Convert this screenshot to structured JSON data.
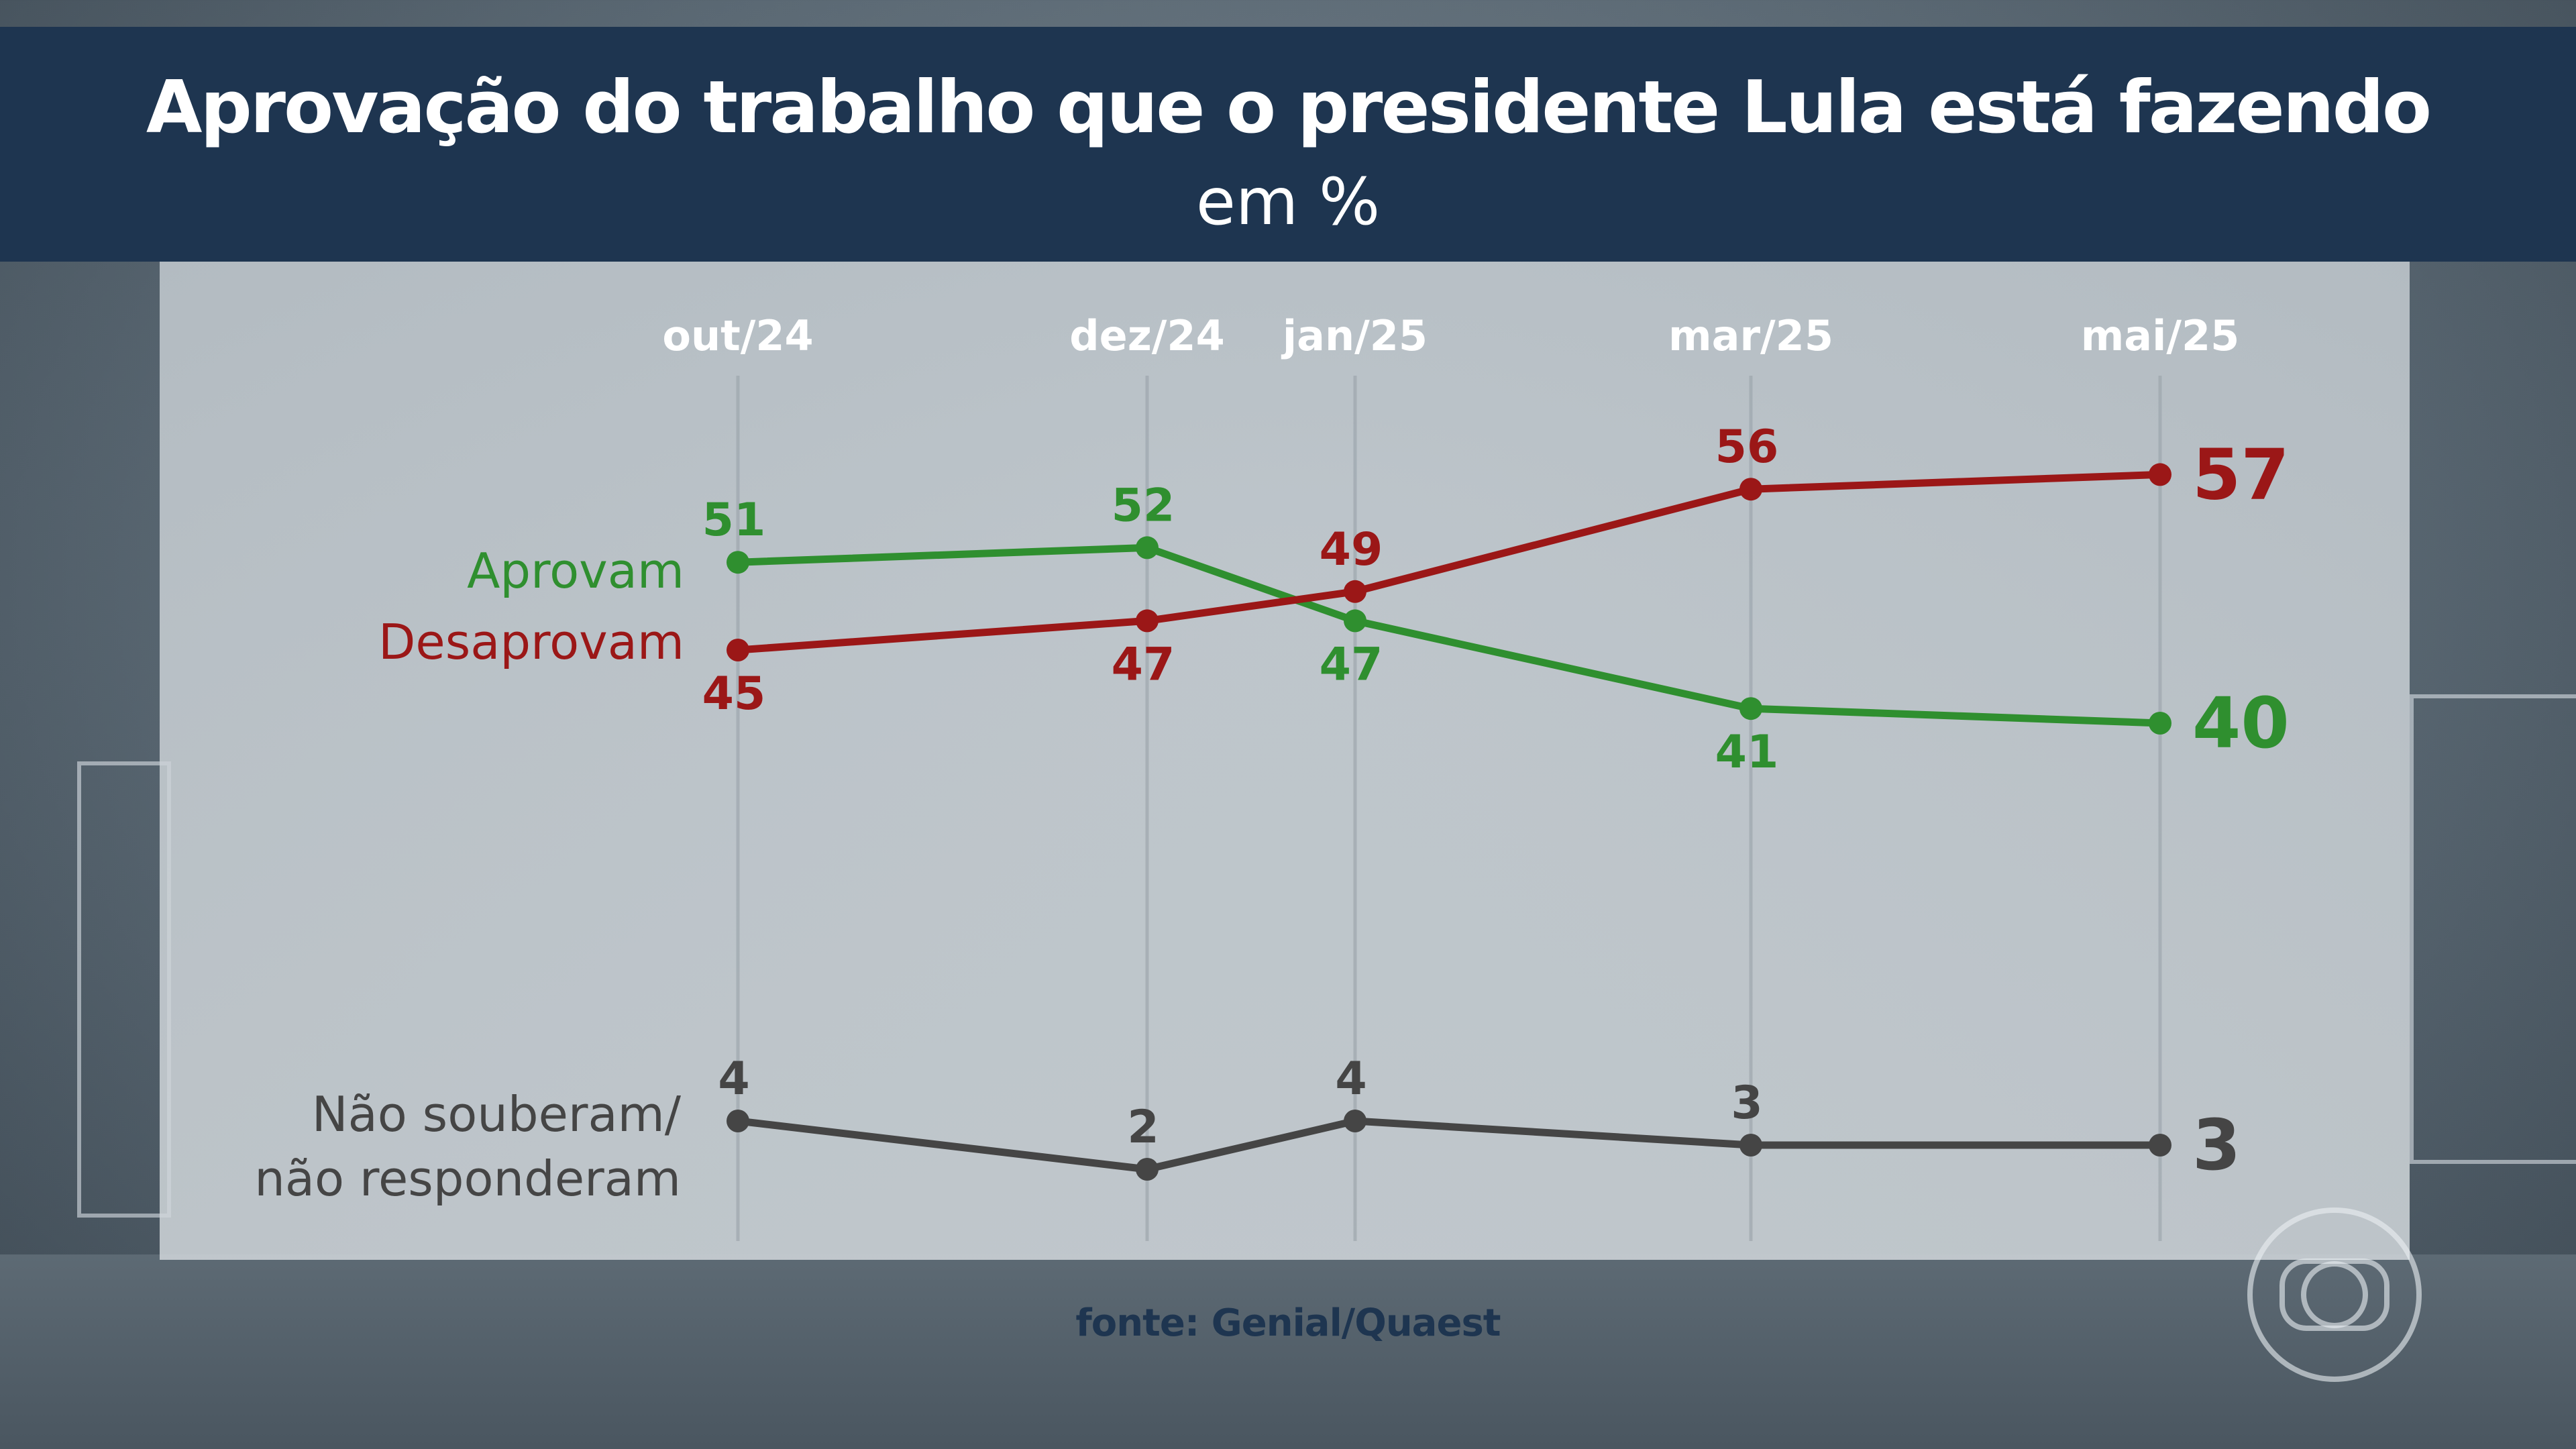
{
  "title": "Aprovação do trabalho que o presidente Lula está fazendo",
  "subtitle": "em %",
  "source": "fonte: Genial/Quaest",
  "colors": {
    "header_bg": "#1e3550",
    "aprovam": "#2f8f2f",
    "desaprovam": "#9b1717",
    "nao_souberam": "#454545"
  },
  "logo_icon": "tv-globo-logo-icon",
  "chart_data": {
    "type": "line",
    "title": "Aprovação do trabalho que o presidente Lula está fazendo",
    "subtitle": "em %",
    "categories": [
      "out/24",
      "dez/24",
      "jan/25",
      "mar/25",
      "mai/25"
    ],
    "ylim": [
      0,
      60
    ],
    "grid": "vertical",
    "series": [
      {
        "key": "aprovam",
        "name": "Aprovam",
        "values": [
          51,
          52,
          47,
          41,
          40
        ],
        "label_side": [
          "above",
          "above",
          "below",
          "below",
          "right"
        ]
      },
      {
        "key": "desaprovam",
        "name": "Desaprovam",
        "values": [
          45,
          47,
          49,
          56,
          57
        ],
        "label_side": [
          "below",
          "below",
          "above",
          "above",
          "right"
        ]
      },
      {
        "key": "nao_souberam",
        "name_lines": [
          "Não souberam/",
          "não responderam"
        ],
        "values": [
          4,
          2,
          4,
          3,
          3
        ],
        "label_side": [
          "above",
          "above",
          "above",
          "above",
          "right"
        ]
      }
    ]
  }
}
